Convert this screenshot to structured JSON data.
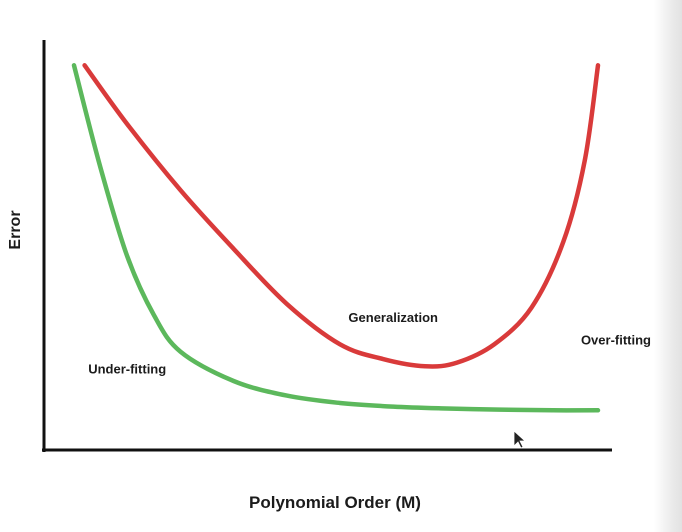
{
  "chart_data": {
    "type": "line",
    "title": "",
    "xlabel": "Polynomial Order (M)",
    "ylabel": "Error",
    "grid": false,
    "legend": "none",
    "x_ticks": [],
    "y_ticks": [],
    "series": [
      {
        "color": "#d93a3a",
        "points": [
          [
            0.02,
            0.98
          ],
          [
            0.1,
            0.82
          ],
          [
            0.2,
            0.64
          ],
          [
            0.3,
            0.48
          ],
          [
            0.4,
            0.33
          ],
          [
            0.5,
            0.22
          ],
          [
            0.58,
            0.18
          ],
          [
            0.66,
            0.16
          ],
          [
            0.72,
            0.17
          ],
          [
            0.79,
            0.22
          ],
          [
            0.86,
            0.32
          ],
          [
            0.92,
            0.5
          ],
          [
            0.96,
            0.72
          ],
          [
            0.985,
            0.98
          ]
        ]
      },
      {
        "color": "#5cb85c",
        "points": [
          [
            0.0,
            0.98
          ],
          [
            0.05,
            0.7
          ],
          [
            0.1,
            0.46
          ],
          [
            0.15,
            0.3
          ],
          [
            0.2,
            0.2
          ],
          [
            0.3,
            0.12
          ],
          [
            0.4,
            0.08
          ],
          [
            0.5,
            0.06
          ],
          [
            0.6,
            0.05
          ],
          [
            0.7,
            0.045
          ],
          [
            0.8,
            0.042
          ],
          [
            0.9,
            0.04
          ],
          [
            0.985,
            0.04
          ]
        ]
      }
    ],
    "annotations": [
      {
        "text": "Generalization",
        "x": 0.6,
        "y": 0.28
      },
      {
        "text": "Under-fitting",
        "x": 0.1,
        "y": 0.14
      },
      {
        "text": "Over-fitting",
        "x": 1.0,
        "y": 0.22
      }
    ]
  },
  "colors": {
    "axis": "#111111",
    "text": "#1b1b1b",
    "background": "#ffffff"
  }
}
